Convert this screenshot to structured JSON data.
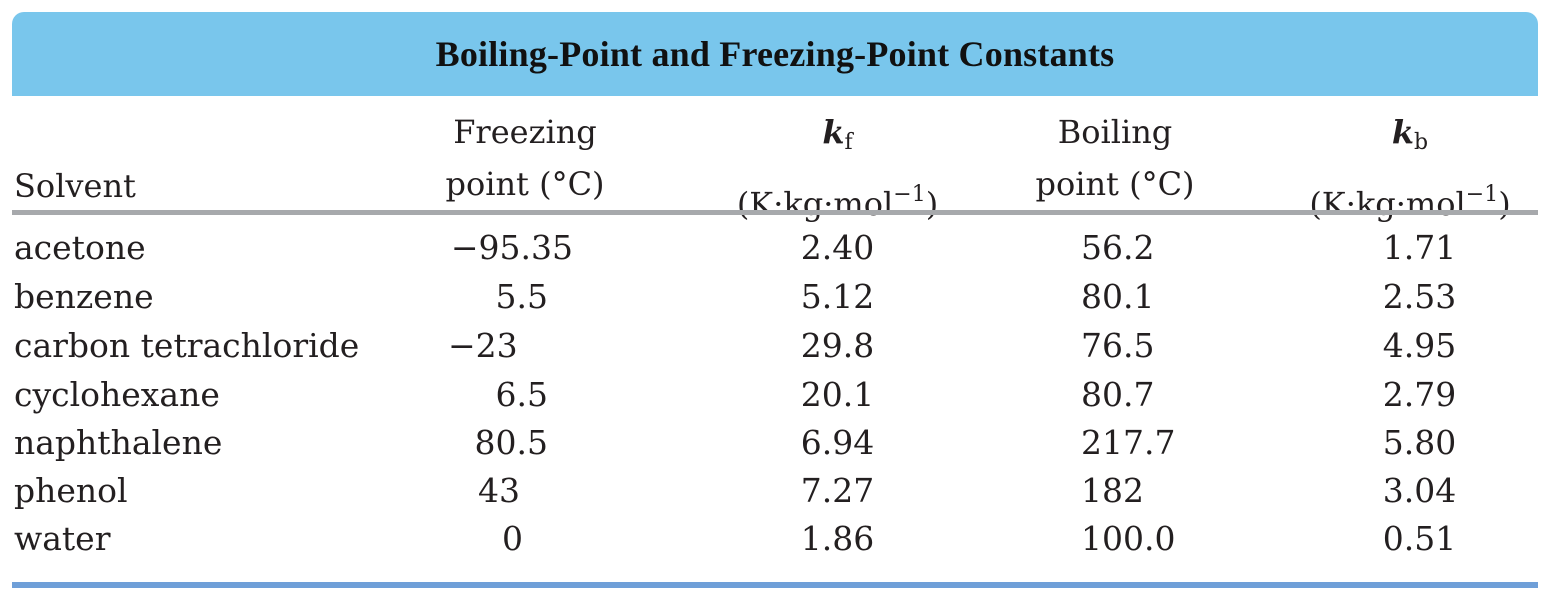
{
  "table": {
    "title": "Boiling-Point and Freezing-Point Constants",
    "headers": {
      "solvent": "Solvent",
      "freezing_line1": "Freezing",
      "freezing_line2": "point (°C)",
      "kf_symbol": "k",
      "kf_subscript": "f",
      "kf_unit_pre": "(K·kg·mol",
      "kf_unit_exp": "−1",
      "kf_unit_post": ")",
      "boiling_line1": "Boiling",
      "boiling_line2": "point (°C)",
      "kb_symbol": "k",
      "kb_subscript": "b",
      "kb_unit_pre": "(K·kg·mol",
      "kb_unit_exp": "−1",
      "kb_unit_post": ")"
    },
    "rows": [
      {
        "solvent": "acetone",
        "freezing_point": "−95.35",
        "kf": "2.40",
        "boiling_point": "56.2",
        "kb": "1.71"
      },
      {
        "solvent": "benzene",
        "freezing_point": "5.5",
        "kf": "5.12",
        "boiling_point": "80.1",
        "kb": "2.53"
      },
      {
        "solvent": "carbon tetrachloride",
        "freezing_point": "−23",
        "kf": "29.8",
        "boiling_point": "76.5",
        "kb": "4.95"
      },
      {
        "solvent": "cyclohexane",
        "freezing_point": "6.5",
        "kf": "20.1",
        "boiling_point": "80.7",
        "kb": "2.79"
      },
      {
        "solvent": "naphthalene",
        "freezing_point": "80.5",
        "kf": "6.94",
        "boiling_point": "217.7",
        "kb": "5.80"
      },
      {
        "solvent": "phenol",
        "freezing_point": "43",
        "kf": "7.27",
        "boiling_point": "182",
        "kb": "3.04"
      },
      {
        "solvent": "water",
        "freezing_point": "0",
        "kf": "1.86",
        "boiling_point": "100.0",
        "kb": "0.51"
      }
    ],
    "colors": {
      "title_band": "#79c6ec",
      "header_rule": "#a7a9ac",
      "bottom_rule": "#6f9fd8"
    }
  }
}
